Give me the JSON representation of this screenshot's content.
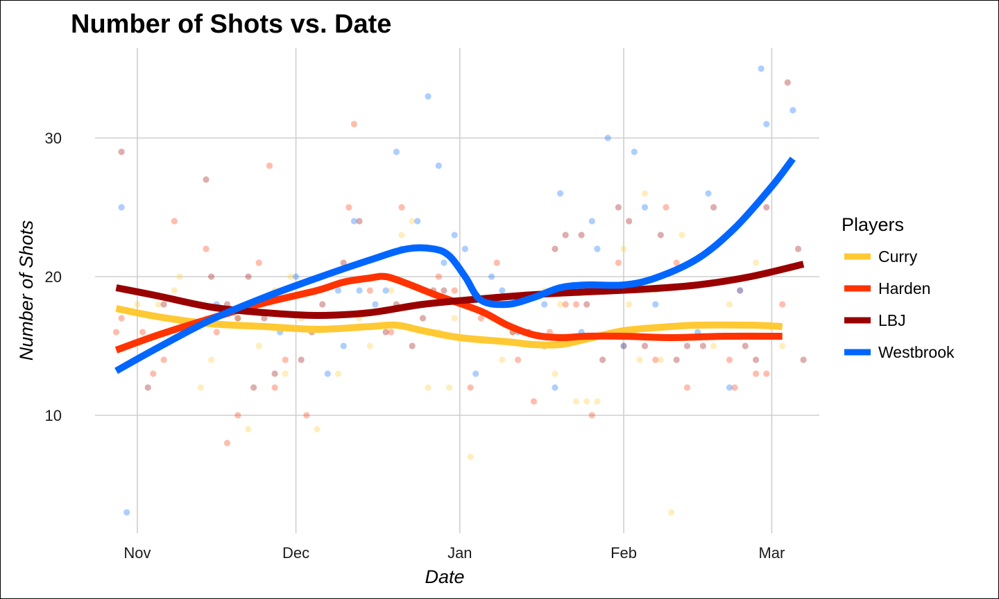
{
  "chart_data": {
    "type": "scatter",
    "title": "Number of Shots vs. Date",
    "xlabel": "Date",
    "ylabel": "Number of Shots",
    "x_ticks": [
      {
        "date": "2016-11-01",
        "label": "Nov"
      },
      {
        "date": "2016-12-01",
        "label": "Dec"
      },
      {
        "date": "2017-01-01",
        "label": "Jan"
      },
      {
        "date": "2017-02-01",
        "label": "Feb"
      },
      {
        "date": "2017-03-01",
        "label": "Mar"
      }
    ],
    "y_ticks": [
      10,
      20,
      30
    ],
    "xlim": [
      "2016-10-24",
      "2017-03-10"
    ],
    "ylim": [
      1.5,
      36.5
    ],
    "grid": true,
    "legend_title": "Players",
    "legend_position": "right",
    "series": [
      {
        "name": "Curry",
        "color": "#FFC933",
        "points": [
          [
            "2016-11-01",
            18
          ],
          [
            "2016-11-05",
            18
          ],
          [
            "2016-11-08",
            19
          ],
          [
            "2016-11-09",
            20
          ],
          [
            "2016-11-13",
            12
          ],
          [
            "2016-11-15",
            14
          ],
          [
            "2016-11-20",
            17
          ],
          [
            "2016-11-22",
            9
          ],
          [
            "2016-11-24",
            15
          ],
          [
            "2016-11-27",
            19
          ],
          [
            "2016-11-29",
            13
          ],
          [
            "2016-11-30",
            20
          ],
          [
            "2016-12-02",
            17
          ],
          [
            "2016-12-05",
            9
          ],
          [
            "2016-12-09",
            13
          ],
          [
            "2016-12-13",
            17
          ],
          [
            "2016-12-15",
            15
          ],
          [
            "2016-12-19",
            19
          ],
          [
            "2016-12-21",
            23
          ],
          [
            "2016-12-23",
            24
          ],
          [
            "2016-12-26",
            12
          ],
          [
            "2016-12-28",
            16
          ],
          [
            "2016-12-30",
            12
          ],
          [
            "2016-12-31",
            17
          ],
          [
            "2017-01-03",
            7
          ],
          [
            "2017-01-07",
            17
          ],
          [
            "2017-01-09",
            14
          ],
          [
            "2017-01-11",
            16
          ],
          [
            "2017-01-17",
            19
          ],
          [
            "2017-01-19",
            13
          ],
          [
            "2017-01-20",
            18
          ],
          [
            "2017-01-23",
            11
          ],
          [
            "2017-01-25",
            11
          ],
          [
            "2017-01-27",
            11
          ],
          [
            "2017-02-01",
            22
          ],
          [
            "2017-02-02",
            18
          ],
          [
            "2017-02-04",
            14
          ],
          [
            "2017-02-05",
            26
          ],
          [
            "2017-02-07",
            19
          ],
          [
            "2017-02-08",
            14
          ],
          [
            "2017-02-10",
            3
          ],
          [
            "2017-02-12",
            23
          ],
          [
            "2017-02-18",
            15
          ],
          [
            "2017-02-21",
            18
          ],
          [
            "2017-02-26",
            21
          ],
          [
            "2017-03-03",
            15
          ]
        ],
        "trend": [
          [
            "2016-10-28",
            17.7
          ],
          [
            "2016-11-05",
            17.1
          ],
          [
            "2016-11-15",
            16.6
          ],
          [
            "2016-11-25",
            16.4
          ],
          [
            "2016-12-05",
            16.2
          ],
          [
            "2016-12-15",
            16.4
          ],
          [
            "2016-12-20",
            16.5
          ],
          [
            "2016-12-25",
            16.1
          ],
          [
            "2017-01-01",
            15.6
          ],
          [
            "2017-01-10",
            15.3
          ],
          [
            "2017-01-15",
            15.1
          ],
          [
            "2017-01-20",
            15.1
          ],
          [
            "2017-01-25",
            15.5
          ],
          [
            "2017-02-01",
            16.1
          ],
          [
            "2017-02-10",
            16.4
          ],
          [
            "2017-02-15",
            16.5
          ],
          [
            "2017-02-25",
            16.5
          ],
          [
            "2017-03-03",
            16.4
          ]
        ]
      },
      {
        "name": "Harden",
        "color": "#FF3300",
        "points": [
          [
            "2016-10-28",
            16
          ],
          [
            "2016-10-29",
            17
          ],
          [
            "2016-11-02",
            16
          ],
          [
            "2016-11-04",
            13
          ],
          [
            "2016-11-06",
            14
          ],
          [
            "2016-11-08",
            24
          ],
          [
            "2016-11-14",
            22
          ],
          [
            "2016-11-16",
            16
          ],
          [
            "2016-11-18",
            8
          ],
          [
            "2016-11-20",
            10
          ],
          [
            "2016-11-24",
            21
          ],
          [
            "2016-11-26",
            28
          ],
          [
            "2016-11-27",
            12
          ],
          [
            "2016-11-29",
            14
          ],
          [
            "2016-12-03",
            10
          ],
          [
            "2016-12-11",
            25
          ],
          [
            "2016-12-12",
            31
          ],
          [
            "2016-12-15",
            19
          ],
          [
            "2016-12-19",
            16
          ],
          [
            "2016-12-21",
            25
          ],
          [
            "2016-12-24",
            18
          ],
          [
            "2016-12-28",
            20
          ],
          [
            "2016-12-31",
            19
          ],
          [
            "2017-01-03",
            12
          ],
          [
            "2017-01-05",
            17
          ],
          [
            "2017-01-08",
            21
          ],
          [
            "2017-01-12",
            14
          ],
          [
            "2017-01-15",
            11
          ],
          [
            "2017-01-18",
            16
          ],
          [
            "2017-01-21",
            18
          ],
          [
            "2017-01-23",
            18
          ],
          [
            "2017-01-26",
            10
          ],
          [
            "2017-01-31",
            21
          ],
          [
            "2017-02-01",
            15
          ],
          [
            "2017-02-07",
            14
          ],
          [
            "2017-02-09",
            25
          ],
          [
            "2017-02-11",
            21
          ],
          [
            "2017-02-13",
            12
          ],
          [
            "2017-02-21",
            14
          ],
          [
            "2017-02-22",
            12
          ],
          [
            "2017-02-23",
            19
          ],
          [
            "2017-02-26",
            13
          ],
          [
            "2017-02-28",
            13
          ],
          [
            "2017-03-03",
            18
          ]
        ],
        "trend": [
          [
            "2016-10-28",
            14.7
          ],
          [
            "2016-11-05",
            15.8
          ],
          [
            "2016-11-15",
            17.0
          ],
          [
            "2016-11-25",
            18.1
          ],
          [
            "2016-12-05",
            19.0
          ],
          [
            "2016-12-10",
            19.6
          ],
          [
            "2016-12-15",
            19.9
          ],
          [
            "2016-12-18",
            20.0
          ],
          [
            "2016-12-22",
            19.5
          ],
          [
            "2016-12-28",
            18.6
          ],
          [
            "2017-01-05",
            17.5
          ],
          [
            "2017-01-10",
            16.5
          ],
          [
            "2017-01-15",
            15.8
          ],
          [
            "2017-01-20",
            15.6
          ],
          [
            "2017-01-25",
            15.7
          ],
          [
            "2017-02-01",
            15.7
          ],
          [
            "2017-02-10",
            15.6
          ],
          [
            "2017-02-20",
            15.7
          ],
          [
            "2017-03-03",
            15.7
          ]
        ]
      },
      {
        "name": "LBJ",
        "color": "#990000",
        "points": [
          [
            "2016-10-29",
            29
          ],
          [
            "2016-11-03",
            12
          ],
          [
            "2016-11-06",
            18
          ],
          [
            "2016-11-14",
            27
          ],
          [
            "2016-11-15",
            20
          ],
          [
            "2016-11-18",
            18
          ],
          [
            "2016-11-20",
            17
          ],
          [
            "2016-11-22",
            20
          ],
          [
            "2016-11-23",
            12
          ],
          [
            "2016-11-25",
            17
          ],
          [
            "2016-11-27",
            13
          ],
          [
            "2016-12-02",
            14
          ],
          [
            "2016-12-04",
            16
          ],
          [
            "2016-12-06",
            18
          ],
          [
            "2016-12-10",
            21
          ],
          [
            "2016-12-13",
            24
          ],
          [
            "2016-12-18",
            16
          ],
          [
            "2016-12-20",
            18
          ],
          [
            "2016-12-23",
            15
          ],
          [
            "2016-12-25",
            17
          ],
          [
            "2016-12-27",
            19
          ],
          [
            "2016-12-29",
            19
          ],
          [
            "2017-01-11",
            16
          ],
          [
            "2017-01-14",
            16
          ],
          [
            "2017-01-17",
            15
          ],
          [
            "2017-01-19",
            22
          ],
          [
            "2017-01-21",
            23
          ],
          [
            "2017-01-24",
            23
          ],
          [
            "2017-01-25",
            18
          ],
          [
            "2017-01-28",
            14
          ],
          [
            "2017-01-31",
            25
          ],
          [
            "2017-02-02",
            24
          ],
          [
            "2017-02-05",
            15
          ],
          [
            "2017-02-08",
            23
          ],
          [
            "2017-02-11",
            14
          ],
          [
            "2017-02-13",
            15
          ],
          [
            "2017-02-16",
            15
          ],
          [
            "2017-02-18",
            25
          ],
          [
            "2017-02-24",
            15
          ],
          [
            "2017-02-26",
            14
          ],
          [
            "2017-02-28",
            25
          ],
          [
            "2017-03-04",
            34
          ],
          [
            "2017-03-06",
            22
          ],
          [
            "2017-03-07",
            14
          ]
        ],
        "trend": [
          [
            "2016-10-28",
            19.2
          ],
          [
            "2016-11-05",
            18.6
          ],
          [
            "2016-11-15",
            17.8
          ],
          [
            "2016-11-25",
            17.4
          ],
          [
            "2016-12-05",
            17.2
          ],
          [
            "2016-12-15",
            17.4
          ],
          [
            "2016-12-25",
            18.0
          ],
          [
            "2017-01-05",
            18.4
          ],
          [
            "2017-01-15",
            18.7
          ],
          [
            "2017-01-25",
            18.9
          ],
          [
            "2017-02-05",
            19.1
          ],
          [
            "2017-02-15",
            19.4
          ],
          [
            "2017-02-25",
            20.0
          ],
          [
            "2017-03-07",
            20.9
          ]
        ]
      },
      {
        "name": "Westbrook",
        "color": "#0066FF",
        "points": [
          [
            "2016-10-29",
            25
          ],
          [
            "2016-10-30",
            3
          ],
          [
            "2016-11-16",
            18
          ],
          [
            "2016-11-28",
            16
          ],
          [
            "2016-12-01",
            20
          ],
          [
            "2016-12-07",
            13
          ],
          [
            "2016-12-09",
            19
          ],
          [
            "2016-12-10",
            15
          ],
          [
            "2016-12-12",
            24
          ],
          [
            "2016-12-13",
            19
          ],
          [
            "2016-12-16",
            18
          ],
          [
            "2016-12-18",
            19
          ],
          [
            "2016-12-20",
            29
          ],
          [
            "2016-12-21",
            22
          ],
          [
            "2016-12-24",
            24
          ],
          [
            "2016-12-26",
            33
          ],
          [
            "2016-12-28",
            28
          ],
          [
            "2016-12-29",
            21
          ],
          [
            "2016-12-31",
            23
          ],
          [
            "2017-01-02",
            22
          ],
          [
            "2017-01-04",
            13
          ],
          [
            "2017-01-07",
            20
          ],
          [
            "2017-01-09",
            19
          ],
          [
            "2017-01-12",
            16
          ],
          [
            "2017-01-17",
            18
          ],
          [
            "2017-01-19",
            12
          ],
          [
            "2017-01-20",
            26
          ],
          [
            "2017-01-24",
            16
          ],
          [
            "2017-01-26",
            24
          ],
          [
            "2017-01-27",
            22
          ],
          [
            "2017-01-29",
            30
          ],
          [
            "2017-02-01",
            15
          ],
          [
            "2017-02-03",
            29
          ],
          [
            "2017-02-05",
            25
          ],
          [
            "2017-02-07",
            18
          ],
          [
            "2017-02-15",
            16
          ],
          [
            "2017-02-17",
            26
          ],
          [
            "2017-02-21",
            12
          ],
          [
            "2017-02-23",
            19
          ],
          [
            "2017-02-27",
            35
          ],
          [
            "2017-02-28",
            31
          ],
          [
            "2017-03-05",
            32
          ]
        ],
        "trend": [
          [
            "2016-10-28",
            13.2
          ],
          [
            "2016-11-05",
            14.9
          ],
          [
            "2016-11-15",
            16.9
          ],
          [
            "2016-11-25",
            18.5
          ],
          [
            "2016-12-05",
            19.9
          ],
          [
            "2016-12-15",
            21.2
          ],
          [
            "2016-12-22",
            22.0
          ],
          [
            "2016-12-27",
            22.0
          ],
          [
            "2016-12-30",
            21.5
          ],
          [
            "2017-01-02",
            20.0
          ],
          [
            "2017-01-05",
            18.3
          ],
          [
            "2017-01-10",
            18.0
          ],
          [
            "2017-01-15",
            18.5
          ],
          [
            "2017-01-20",
            19.2
          ],
          [
            "2017-01-25",
            19.4
          ],
          [
            "2017-02-01",
            19.4
          ],
          [
            "2017-02-07",
            19.9
          ],
          [
            "2017-02-15",
            21.3
          ],
          [
            "2017-02-22",
            23.5
          ],
          [
            "2017-03-01",
            26.5
          ],
          [
            "2017-03-05",
            28.5
          ]
        ]
      }
    ]
  }
}
